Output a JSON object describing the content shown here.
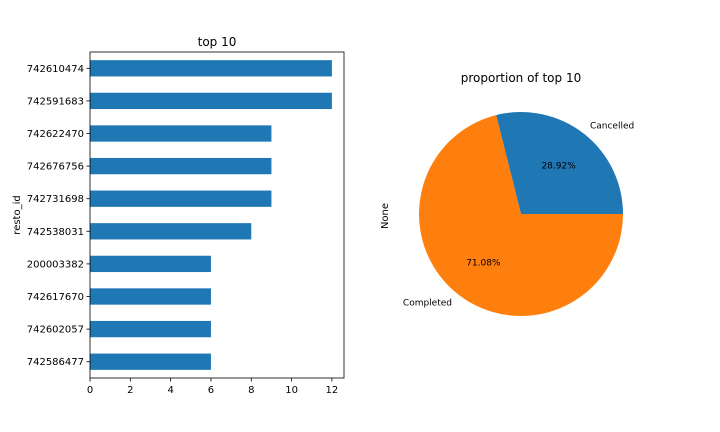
{
  "chart_data": [
    {
      "type": "bar",
      "orientation": "horizontal",
      "title": "top 10",
      "xlabel": "",
      "ylabel": "resto_id",
      "categories": [
        "742610474",
        "742591683",
        "742622470",
        "742676756",
        "742731698",
        "742538031",
        "200003382",
        "742617670",
        "742602057",
        "742586477"
      ],
      "values": [
        12,
        12,
        9,
        9,
        9,
        8,
        6,
        6,
        6,
        6
      ],
      "xlim": [
        0,
        12.6
      ],
      "xticks": [
        "0",
        "2",
        "4",
        "6",
        "8",
        "10",
        "12"
      ],
      "grid": false,
      "color": "#1f77b4"
    },
    {
      "type": "pie",
      "title": "proportion of top 10",
      "ylabel": "None",
      "slices": [
        {
          "label": "Cancelled",
          "value": 28.92,
          "pct_label": "28.92%",
          "color": "#1f77b4"
        },
        {
          "label": "Completed",
          "value": 71.08,
          "pct_label": "71.08%",
          "color": "#ff7f0e"
        }
      ]
    }
  ]
}
